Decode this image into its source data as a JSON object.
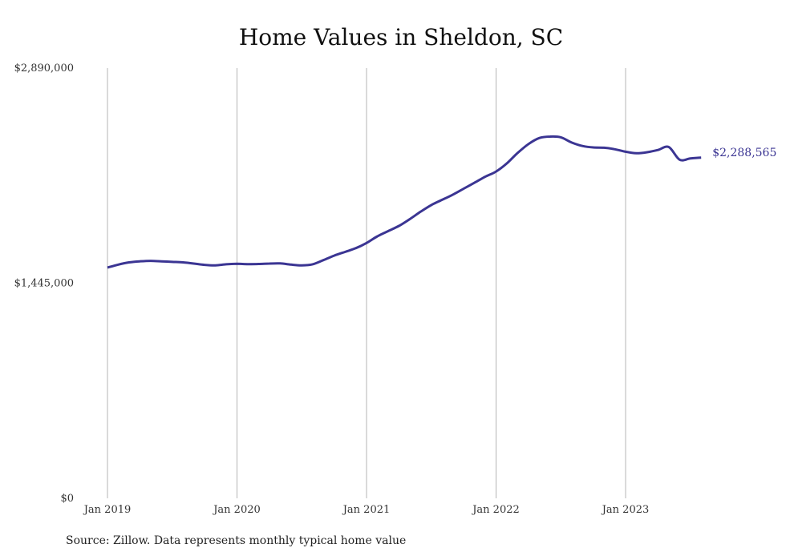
{
  "colors": {
    "line": "#3b3593",
    "grid": "#b5b5b5",
    "text": "#333333"
  },
  "chart_data": {
    "type": "line",
    "title": "Home Values in Sheldon, SC",
    "xlabel": "",
    "ylabel": "",
    "ylim": [
      0,
      2890000
    ],
    "yticks": [
      0,
      1445000,
      2890000
    ],
    "ytick_labels": [
      "$0",
      "$1,445,000",
      "$2,890,000"
    ],
    "xlim": [
      "2019-01",
      "2023-08"
    ],
    "xticks": [
      "2019-01",
      "2020-01",
      "2021-01",
      "2022-01",
      "2023-01"
    ],
    "xtick_labels": [
      "Jan 2019",
      "Jan 2020",
      "Jan 2021",
      "Jan 2022",
      "Jan 2023"
    ],
    "grid": "vertical",
    "legend": "none",
    "end_label": "$2,288,565",
    "series": [
      {
        "x": [
          "2019-01",
          "2019-02",
          "2019-03",
          "2019-04",
          "2019-05",
          "2019-06",
          "2019-07",
          "2019-08",
          "2019-09",
          "2019-10",
          "2019-11",
          "2019-12",
          "2020-01",
          "2020-02",
          "2020-03",
          "2020-04",
          "2020-05",
          "2020-06",
          "2020-07",
          "2020-08",
          "2020-09",
          "2020-10",
          "2020-11",
          "2020-12",
          "2021-01",
          "2021-02",
          "2021-03",
          "2021-04",
          "2021-05",
          "2021-06",
          "2021-07",
          "2021-08",
          "2021-09",
          "2021-10",
          "2021-11",
          "2021-12",
          "2022-01",
          "2022-02",
          "2022-03",
          "2022-04",
          "2022-05",
          "2022-06",
          "2022-07",
          "2022-08",
          "2022-09",
          "2022-10",
          "2022-11",
          "2022-12",
          "2023-01",
          "2023-02",
          "2023-03",
          "2023-04",
          "2023-05",
          "2023-06",
          "2023-07",
          "2023-08"
        ],
        "values": [
          1550000,
          1570000,
          1585000,
          1592000,
          1595000,
          1592000,
          1588000,
          1585000,
          1577000,
          1568000,
          1565000,
          1572000,
          1575000,
          1573000,
          1574000,
          1577000,
          1578000,
          1570000,
          1565000,
          1572000,
          1600000,
          1630000,
          1655000,
          1680000,
          1715000,
          1760000,
          1795000,
          1830000,
          1875000,
          1925000,
          1970000,
          2005000,
          2040000,
          2080000,
          2120000,
          2160000,
          2195000,
          2250000,
          2320000,
          2380000,
          2420000,
          2430000,
          2425000,
          2390000,
          2367000,
          2357000,
          2355000,
          2345000,
          2328000,
          2318000,
          2325000,
          2340000,
          2360000,
          2275000,
          2283000,
          2288565
        ]
      }
    ]
  },
  "source_note": "Source: Zillow. Data represents monthly typical home value"
}
